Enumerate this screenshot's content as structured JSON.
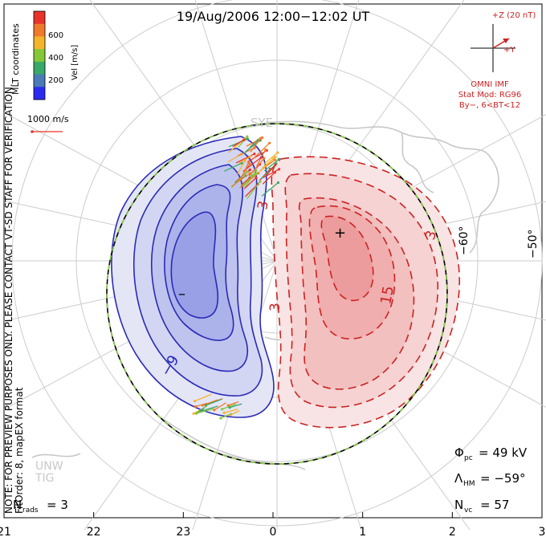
{
  "title": "19/Aug/2006  12:00−12:02  UT",
  "coord_label": "MLT coordinates",
  "colorbar": {
    "label": "Vel [m/s]",
    "ticks": [
      "600",
      "400",
      "200"
    ],
    "colors": [
      "#e8322a",
      "#f07a2a",
      "#f4b42c",
      "#84c83a",
      "#3aa868",
      "#4a7ab8",
      "#2a2af0"
    ]
  },
  "vector_scale": "1000 m/s",
  "imf": {
    "z_label": "+Z (20 nT)",
    "y_label": "+Y",
    "source": "OMNI IMF",
    "model": "Stat Mod: RG96",
    "condition": "By−, 6<BT<12"
  },
  "note": "NOTE: FOR PREVIEW PURPOSES ONLY. PLEASE CONTACT VT-SD STAFF FOR VERIFICATION.",
  "fit_info": "FitOrder: 8, mapEX format",
  "stations": [
    "SYE",
    "UNW",
    "TIG"
  ],
  "lat_labels": [
    "−60°",
    "−50°"
  ],
  "contour_labels": [
    "3",
    "3",
    "3",
    "15",
    "−9"
  ],
  "extrema": {
    "min_symbol": "–",
    "max_symbol": "+"
  },
  "stats": {
    "phi_pc_label": "Φ",
    "phi_pc_sub": "pc",
    "phi_pc_value": "= 49 kV",
    "lambda_hm_label": "Λ",
    "lambda_hm_sub": "HM",
    "lambda_hm_value": "= −59°",
    "n_vc_label": "N",
    "n_vc_sub": "vc",
    "n_vc_value": "= 57",
    "n_rads_label": "N",
    "n_rads_sub": "rads",
    "n_rads_value": "= 3"
  },
  "mlt_ticks": [
    "21",
    "22",
    "23",
    "0",
    "1",
    "2",
    "3"
  ],
  "colors": {
    "negative_line": "#2a2ab8",
    "positive_line": "#cc2222",
    "neg_fill": [
      "#e4e6f6",
      "#d2d6f2",
      "#bfc4ee",
      "#acb2ea",
      "#9aa0e6"
    ],
    "pos_fill": [
      "#f8e4e4",
      "#f6d2d2",
      "#f3c0c0",
      "#f0aeae",
      "#ec9c9c"
    ],
    "hmb": "#88cc44"
  }
}
